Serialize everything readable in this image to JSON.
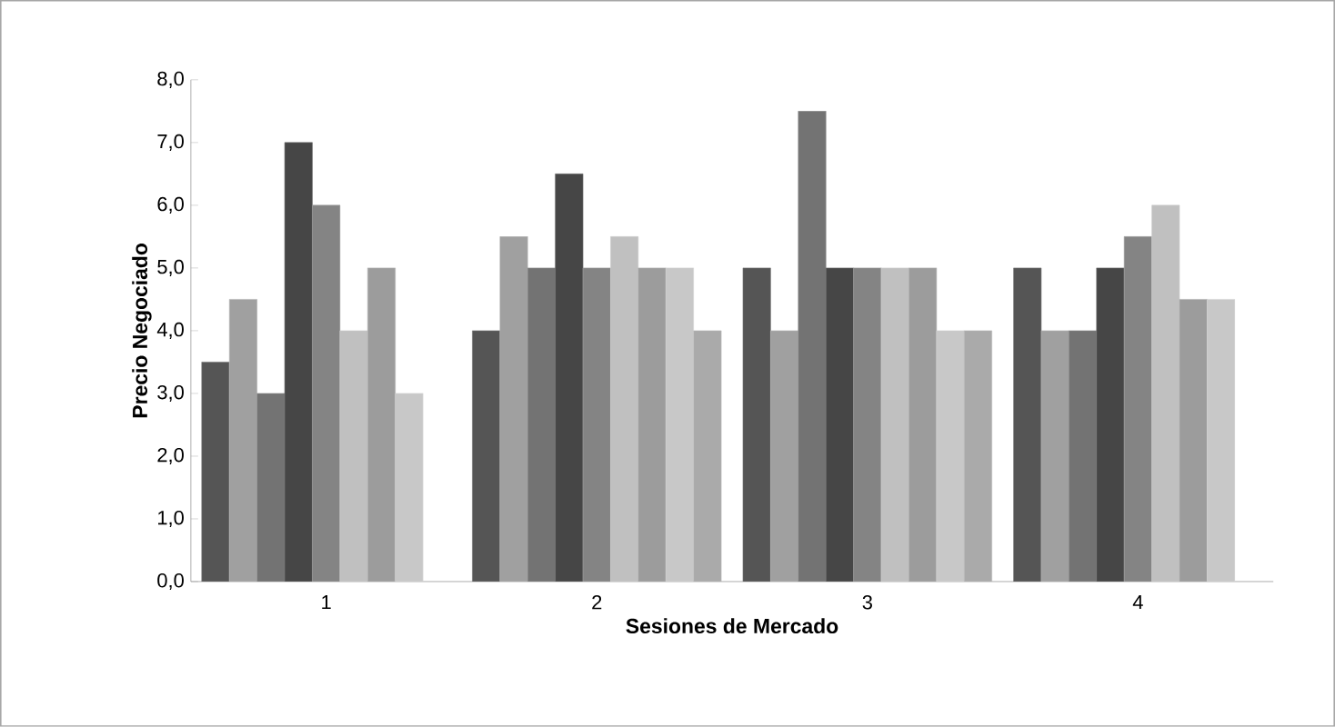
{
  "chart_data": {
    "type": "bar",
    "xlabel": "Sesiones de Mercado",
    "ylabel": "Precio Negociado",
    "categories": [
      "1",
      "2",
      "3",
      "4"
    ],
    "ylim": [
      0,
      8
    ],
    "yticks": [
      {
        "value": 0,
        "label": "0,0"
      },
      {
        "value": 1,
        "label": "1,0"
      },
      {
        "value": 2,
        "label": "2,0"
      },
      {
        "value": 3,
        "label": "3,0"
      },
      {
        "value": 4,
        "label": "4,0"
      },
      {
        "value": 5,
        "label": "5,0"
      },
      {
        "value": 6,
        "label": "6,0"
      },
      {
        "value": 7,
        "label": "7,0"
      },
      {
        "value": 8,
        "label": "8,0"
      }
    ],
    "series": [
      {
        "color": "#555555",
        "values": [
          3.5,
          4.0,
          5.0,
          5.0
        ]
      },
      {
        "color": "#a0a0a0",
        "values": [
          4.5,
          5.5,
          4.0,
          4.0
        ]
      },
      {
        "color": "#737373",
        "values": [
          3.0,
          5.0,
          7.5,
          4.0
        ]
      },
      {
        "color": "#464646",
        "values": [
          7.0,
          6.5,
          5.0,
          5.0
        ]
      },
      {
        "color": "#848484",
        "values": [
          6.0,
          5.0,
          5.0,
          5.5
        ]
      },
      {
        "color": "#c0c0c0",
        "values": [
          4.0,
          5.5,
          5.0,
          6.0
        ]
      },
      {
        "color": "#9c9c9c",
        "values": [
          5.0,
          5.0,
          5.0,
          4.5
        ]
      },
      {
        "color": "#c8c8c8",
        "values": [
          3.0,
          5.0,
          4.0,
          4.5
        ]
      },
      {
        "color": "#aaaaaa",
        "values": [
          null,
          4.0,
          4.0,
          null
        ]
      }
    ]
  }
}
